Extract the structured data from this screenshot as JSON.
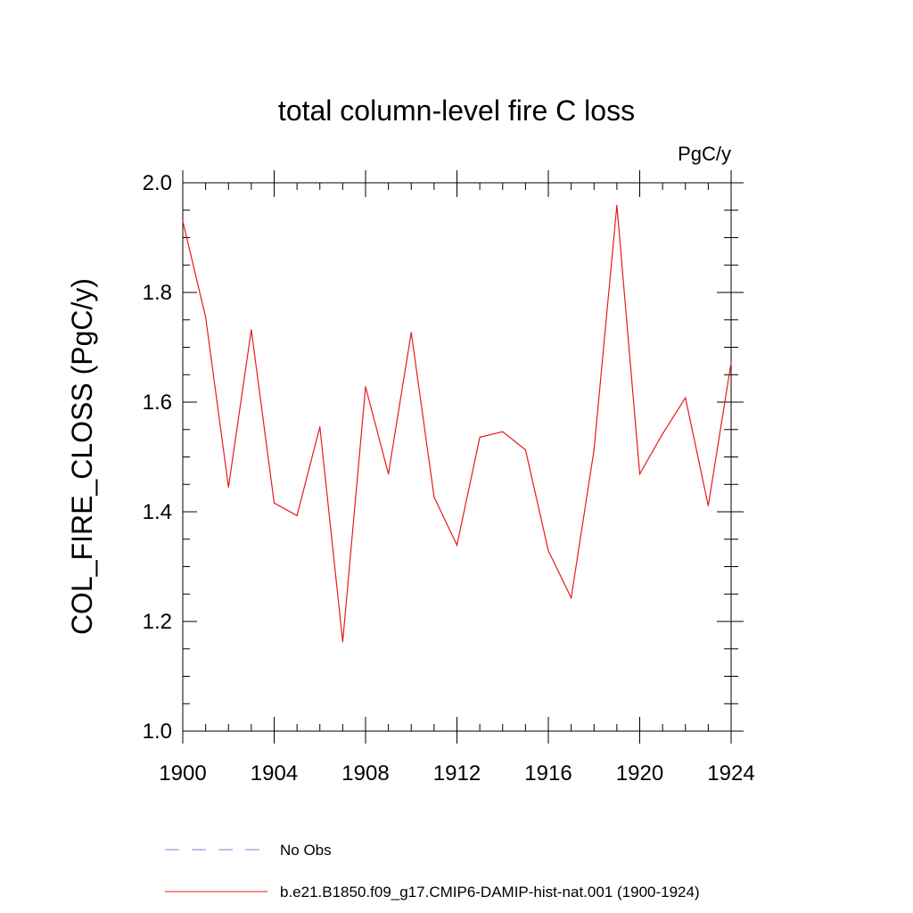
{
  "chart_data": {
    "type": "line",
    "title": "total column-level fire C loss",
    "units": "PgC/y",
    "xlabel": "",
    "ylabel": "COL_FIRE_CLOSS  (PgC/y)",
    "xlim": [
      1900,
      1924
    ],
    "ylim": [
      1.0,
      2.0
    ],
    "xticks": [
      "1900",
      "1904",
      "1908",
      "1912",
      "1916",
      "1920",
      "1924"
    ],
    "yticks": [
      "1.0",
      "1.2",
      "1.4",
      "1.6",
      "1.8",
      "2.0"
    ],
    "grid": false,
    "legend_position": "bottom",
    "x": [
      1900,
      1901,
      1902,
      1903,
      1904,
      1905,
      1906,
      1907,
      1908,
      1909,
      1910,
      1911,
      1912,
      1913,
      1914,
      1915,
      1916,
      1917,
      1918,
      1919,
      1920,
      1921,
      1922,
      1923,
      1924
    ],
    "series": [
      {
        "name": "b.e21.B1850.f09_g17.CMIP6-DAMIP-hist-nat.001 (1900-1924)",
        "color": "#e8191d",
        "style": "solid",
        "values": [
          1.93,
          1.755,
          1.445,
          1.732,
          1.416,
          1.393,
          1.555,
          1.163,
          1.628,
          1.469,
          1.727,
          1.427,
          1.339,
          1.536,
          1.546,
          1.513,
          1.329,
          1.243,
          1.513,
          1.959,
          1.469,
          1.542,
          1.608,
          1.411,
          1.672
        ]
      }
    ],
    "legend": [
      {
        "label": "No Obs",
        "color": "#8a7fd6",
        "style": "dashed"
      },
      {
        "label": "b.e21.B1850.f09_g17.CMIP6-DAMIP-hist-nat.001 (1900-1924)",
        "color": "#e8191d",
        "style": "solid"
      }
    ]
  }
}
